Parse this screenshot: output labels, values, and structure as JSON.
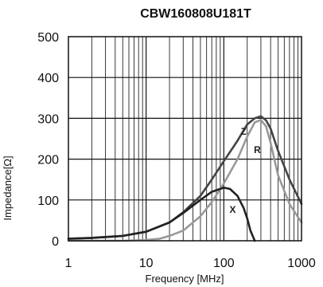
{
  "chart_data": {
    "type": "line",
    "title": "CBW160808U181T",
    "xlabel": "Frequency [MHz]",
    "ylabel": "Impedance[Ω]",
    "x_scale": "log",
    "xlim": [
      1,
      1000
    ],
    "ylim": [
      0,
      500
    ],
    "x_ticks": [
      "1",
      "10",
      "100",
      "1000"
    ],
    "y_ticks": [
      "0",
      "100",
      "200",
      "300",
      "400",
      "500"
    ],
    "grid": true,
    "series": [
      {
        "name": "Z",
        "color": "#444444",
        "x": [
          1,
          2,
          5,
          10,
          20,
          30,
          50,
          70,
          100,
          150,
          200,
          250,
          300,
          350,
          400,
          500,
          700,
          1000
        ],
        "y": [
          5,
          7,
          12,
          22,
          45,
          70,
          110,
          150,
          195,
          245,
          285,
          300,
          305,
          295,
          275,
          220,
          150,
          90
        ]
      },
      {
        "name": "R",
        "color": "#999999",
        "x": [
          1,
          5,
          10,
          15,
          20,
          30,
          50,
          70,
          100,
          150,
          200,
          250,
          300,
          350,
          400,
          500,
          700,
          1000
        ],
        "y": [
          0,
          0,
          2,
          5,
          12,
          25,
          60,
          95,
          140,
          200,
          255,
          290,
          296,
          280,
          240,
          160,
          90,
          45
        ]
      },
      {
        "name": "X",
        "color": "#222222",
        "x": [
          1,
          2,
          5,
          10,
          20,
          30,
          50,
          70,
          100,
          120,
          150,
          180,
          200,
          220,
          250
        ],
        "y": [
          5,
          7,
          12,
          22,
          45,
          68,
          100,
          120,
          130,
          127,
          110,
          80,
          55,
          25,
          0
        ]
      }
    ]
  }
}
